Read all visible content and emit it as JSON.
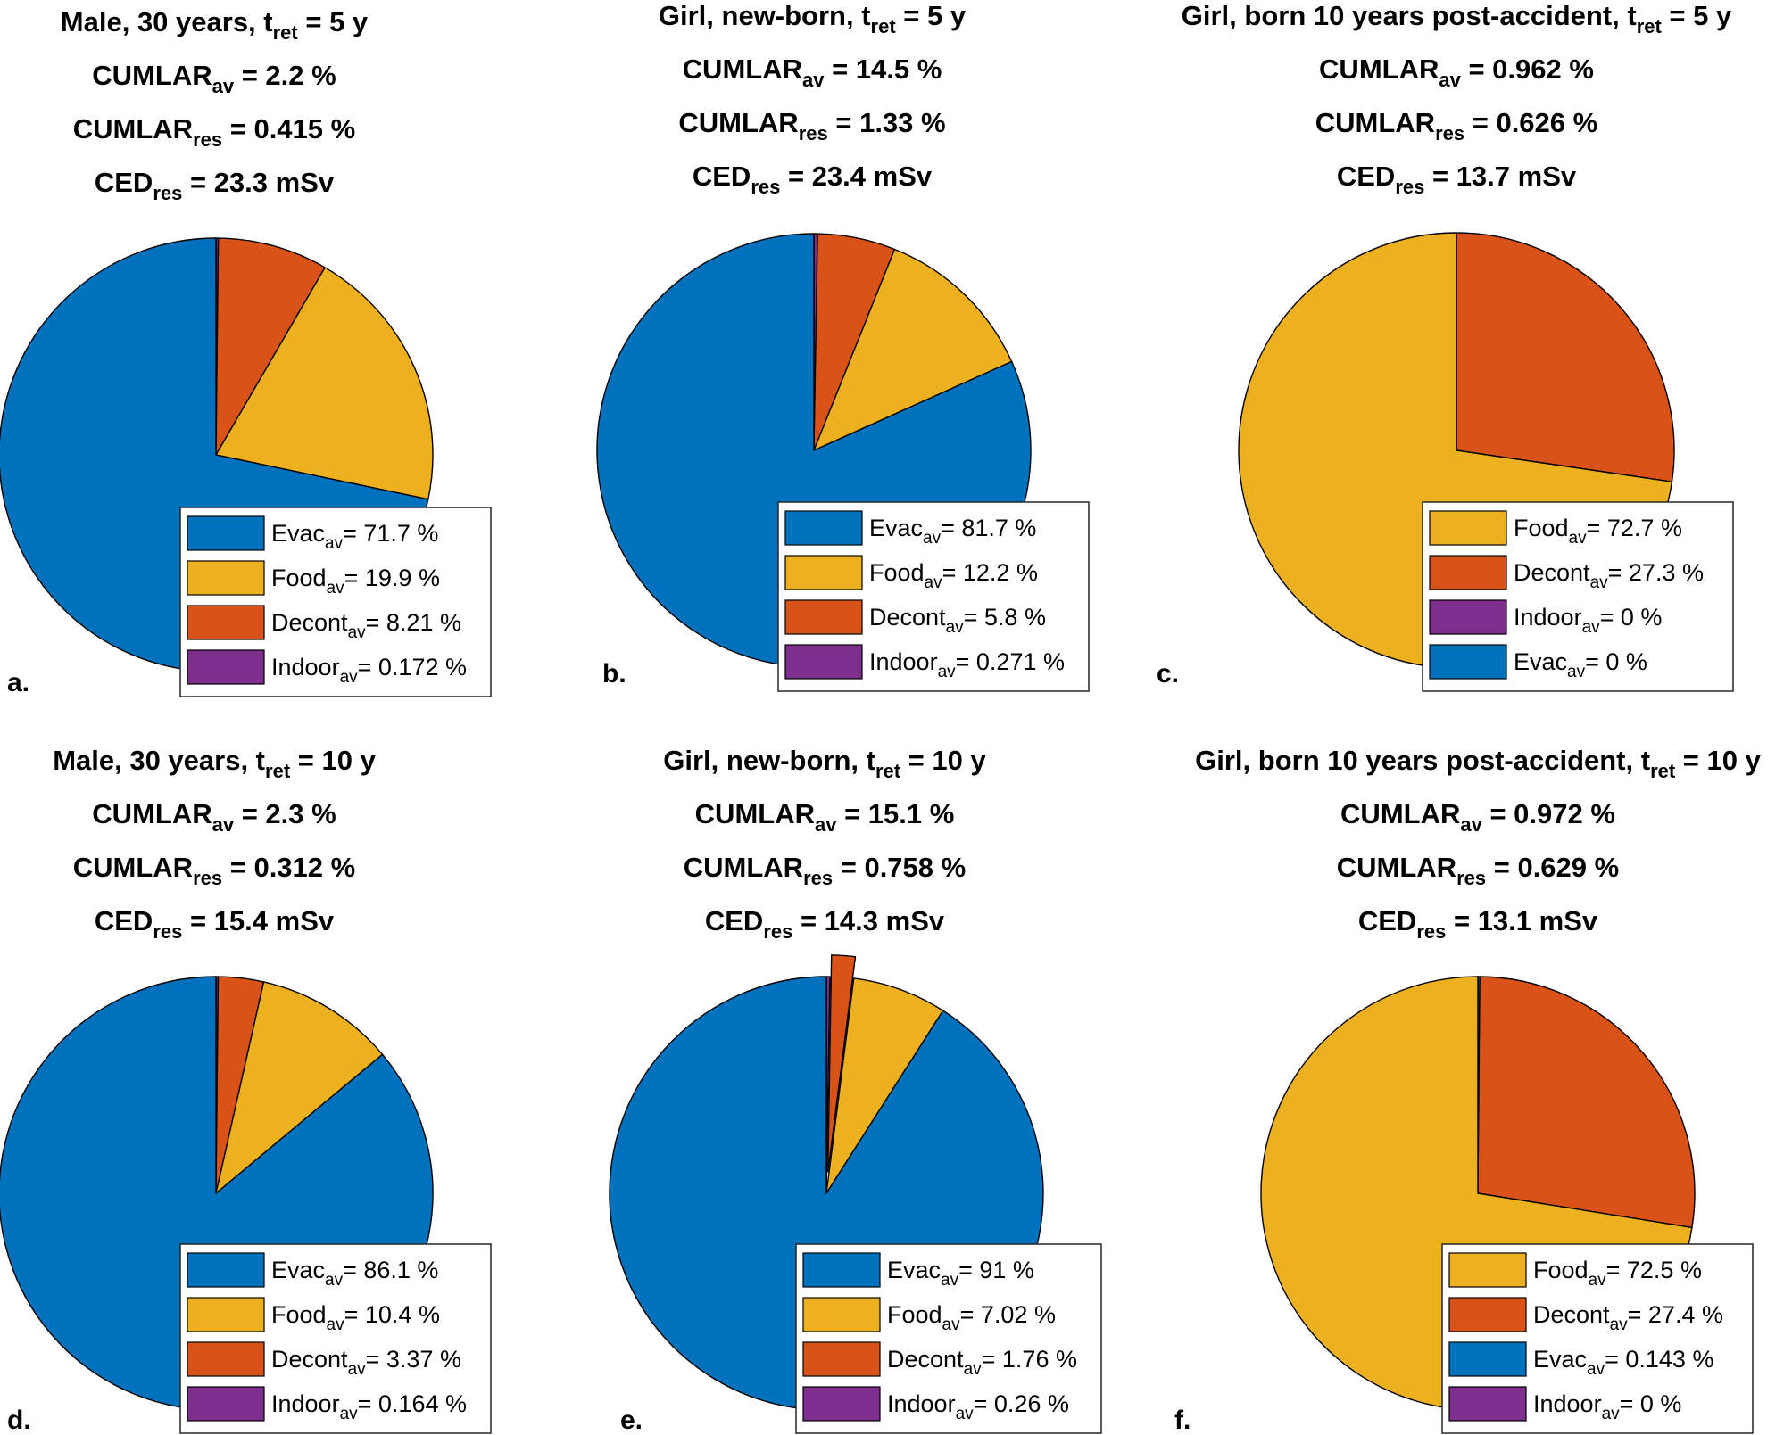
{
  "figure": {
    "description_units": {
      "percent": "%",
      "dose": "mSv"
    }
  },
  "chart_data": [
    {
      "type": "pie",
      "panel_label": "a.",
      "title": {
        "pre": "Male, 30 years, t",
        "sub": "ret",
        "post": " = 5 y"
      },
      "stats": [
        {
          "pre": "CUMLAR",
          "sub": "av",
          "post": " = 2.2 %"
        },
        {
          "pre": "CUMLAR",
          "sub": "res",
          "post": " = 0.415 %"
        },
        {
          "pre": "CED",
          "sub": "res",
          "post": " = 23.3 mSv"
        }
      ],
      "slices": [
        {
          "name": "Indoor",
          "value": 0.172,
          "color": "#7E2F8E"
        },
        {
          "name": "Decont",
          "value": 8.21,
          "color": "#D95319"
        },
        {
          "name": "Food",
          "value": 19.9,
          "color": "#EDB120"
        },
        {
          "name": "Evac",
          "value": 71.7,
          "color": "#0072BD"
        }
      ],
      "legend": [
        {
          "name": "Evac",
          "sub": "av",
          "label": "= 71.7 %",
          "color": "#0072BD"
        },
        {
          "name": "Food",
          "sub": "av",
          "label": "= 19.9 %",
          "color": "#EDB120"
        },
        {
          "name": "Decont",
          "sub": "av",
          "label": "= 8.21 %",
          "color": "#D95319"
        },
        {
          "name": "Indoor",
          "sub": "av",
          "label": "= 0.172 %",
          "color": "#7E2F8E"
        }
      ]
    },
    {
      "type": "pie",
      "panel_label": "b.",
      "title": {
        "pre": "Girl, new-born, t",
        "sub": "ret",
        "post": " = 5 y"
      },
      "stats": [
        {
          "pre": "CUMLAR",
          "sub": "av",
          "post": " = 14.5 %"
        },
        {
          "pre": "CUMLAR",
          "sub": "res",
          "post": " = 1.33 %"
        },
        {
          "pre": "CED",
          "sub": "res",
          "post": " = 23.4 mSv"
        }
      ],
      "slices": [
        {
          "name": "Indoor",
          "value": 0.271,
          "color": "#7E2F8E"
        },
        {
          "name": "Decont",
          "value": 5.8,
          "color": "#D95319"
        },
        {
          "name": "Food",
          "value": 12.2,
          "color": "#EDB120"
        },
        {
          "name": "Evac",
          "value": 81.7,
          "color": "#0072BD"
        }
      ],
      "legend": [
        {
          "name": "Evac",
          "sub": "av",
          "label": "= 81.7 %",
          "color": "#0072BD"
        },
        {
          "name": "Food",
          "sub": "av",
          "label": "= 12.2 %",
          "color": "#EDB120"
        },
        {
          "name": "Decont",
          "sub": "av",
          "label": "= 5.8 %",
          "color": "#D95319"
        },
        {
          "name": "Indoor",
          "sub": "av",
          "label": "= 0.271 %",
          "color": "#7E2F8E"
        }
      ]
    },
    {
      "type": "pie",
      "panel_label": "c.",
      "title": {
        "pre": "Girl, born 10 years post-accident, t",
        "sub": "ret",
        "post": " = 5 y"
      },
      "stats": [
        {
          "pre": "CUMLAR",
          "sub": "av",
          "post": " = 0.962 %"
        },
        {
          "pre": "CUMLAR",
          "sub": "res",
          "post": " = 0.626 %"
        },
        {
          "pre": "CED",
          "sub": "res",
          "post": " = 13.7 mSv"
        }
      ],
      "slices": [
        {
          "name": "Evac",
          "value": 0,
          "color": "#0072BD"
        },
        {
          "name": "Indoor",
          "value": 0,
          "color": "#7E2F8E"
        },
        {
          "name": "Decont",
          "value": 27.3,
          "color": "#D95319"
        },
        {
          "name": "Food",
          "value": 72.7,
          "color": "#EDB120"
        }
      ],
      "legend": [
        {
          "name": "Food",
          "sub": "av",
          "label": "= 72.7 %",
          "color": "#EDB120"
        },
        {
          "name": "Decont",
          "sub": "av",
          "label": "= 27.3 %",
          "color": "#D95319"
        },
        {
          "name": "Indoor",
          "sub": "av",
          "label": "= 0 %",
          "color": "#7E2F8E"
        },
        {
          "name": "Evac",
          "sub": "av",
          "label": "= 0 %",
          "color": "#0072BD"
        }
      ]
    },
    {
      "type": "pie",
      "panel_label": "d.",
      "title": {
        "pre": "Male, 30 years, t",
        "sub": "ret",
        "post": " = 10 y"
      },
      "stats": [
        {
          "pre": "CUMLAR",
          "sub": "av",
          "post": " = 2.3 %"
        },
        {
          "pre": "CUMLAR",
          "sub": "res",
          "post": " = 0.312 %"
        },
        {
          "pre": "CED",
          "sub": "res",
          "post": " = 15.4 mSv"
        }
      ],
      "slices": [
        {
          "name": "Indoor",
          "value": 0.164,
          "color": "#7E2F8E"
        },
        {
          "name": "Decont",
          "value": 3.37,
          "color": "#D95319"
        },
        {
          "name": "Food",
          "value": 10.4,
          "color": "#EDB120"
        },
        {
          "name": "Evac",
          "value": 86.1,
          "color": "#0072BD"
        }
      ],
      "legend": [
        {
          "name": "Evac",
          "sub": "av",
          "label": "= 86.1 %",
          "color": "#0072BD"
        },
        {
          "name": "Food",
          "sub": "av",
          "label": "= 10.4 %",
          "color": "#EDB120"
        },
        {
          "name": "Decont",
          "sub": "av",
          "label": "= 3.37 %",
          "color": "#D95319"
        },
        {
          "name": "Indoor",
          "sub": "av",
          "label": "= 0.164 %",
          "color": "#7E2F8E"
        }
      ]
    },
    {
      "type": "pie",
      "panel_label": "e.",
      "title": {
        "pre": "Girl, new-born, t",
        "sub": "ret",
        "post": " = 10 y"
      },
      "stats": [
        {
          "pre": "CUMLAR",
          "sub": "av",
          "post": " = 15.1 %"
        },
        {
          "pre": "CUMLAR",
          "sub": "res",
          "post": " = 0.758 %"
        },
        {
          "pre": "CED",
          "sub": "res",
          "post": " = 14.3 mSv"
        }
      ],
      "slices": [
        {
          "name": "Indoor",
          "value": 0.26,
          "color": "#7E2F8E"
        },
        {
          "name": "Decont",
          "value": 1.76,
          "color": "#D95319",
          "exploded": true
        },
        {
          "name": "Food",
          "value": 7.02,
          "color": "#EDB120"
        },
        {
          "name": "Evac",
          "value": 91,
          "color": "#0072BD"
        }
      ],
      "legend": [
        {
          "name": "Evac",
          "sub": "av",
          "label": "= 91 %",
          "color": "#0072BD"
        },
        {
          "name": "Food",
          "sub": "av",
          "label": "= 7.02 %",
          "color": "#EDB120"
        },
        {
          "name": "Decont",
          "sub": "av",
          "label": "= 1.76 %",
          "color": "#D95319"
        },
        {
          "name": "Indoor",
          "sub": "av",
          "label": "= 0.26 %",
          "color": "#7E2F8E"
        }
      ]
    },
    {
      "type": "pie",
      "panel_label": "f.",
      "title": {
        "pre": "Girl, born 10 years post-accident, t",
        "sub": "ret",
        "post": " = 10 y"
      },
      "stats": [
        {
          "pre": "CUMLAR",
          "sub": "av",
          "post": " = 0.972 %"
        },
        {
          "pre": "CUMLAR",
          "sub": "res",
          "post": " = 0.629 %"
        },
        {
          "pre": "CED",
          "sub": "res",
          "post": " = 13.1 mSv"
        }
      ],
      "slices": [
        {
          "name": "Indoor",
          "value": 0,
          "color": "#7E2F8E"
        },
        {
          "name": "Evac",
          "value": 0.143,
          "color": "#0072BD"
        },
        {
          "name": "Decont",
          "value": 27.4,
          "color": "#D95319"
        },
        {
          "name": "Food",
          "value": 72.5,
          "color": "#EDB120"
        }
      ],
      "legend": [
        {
          "name": "Food",
          "sub": "av",
          "label": "= 72.5 %",
          "color": "#EDB120"
        },
        {
          "name": "Decont",
          "sub": "av",
          "label": "= 27.4 %",
          "color": "#D95319"
        },
        {
          "name": "Evac",
          "sub": "av",
          "label": "= 0.143 %",
          "color": "#0072BD"
        },
        {
          "name": "Indoor",
          "sub": "av",
          "label": "= 0 %",
          "color": "#7E2F8E"
        }
      ]
    }
  ]
}
